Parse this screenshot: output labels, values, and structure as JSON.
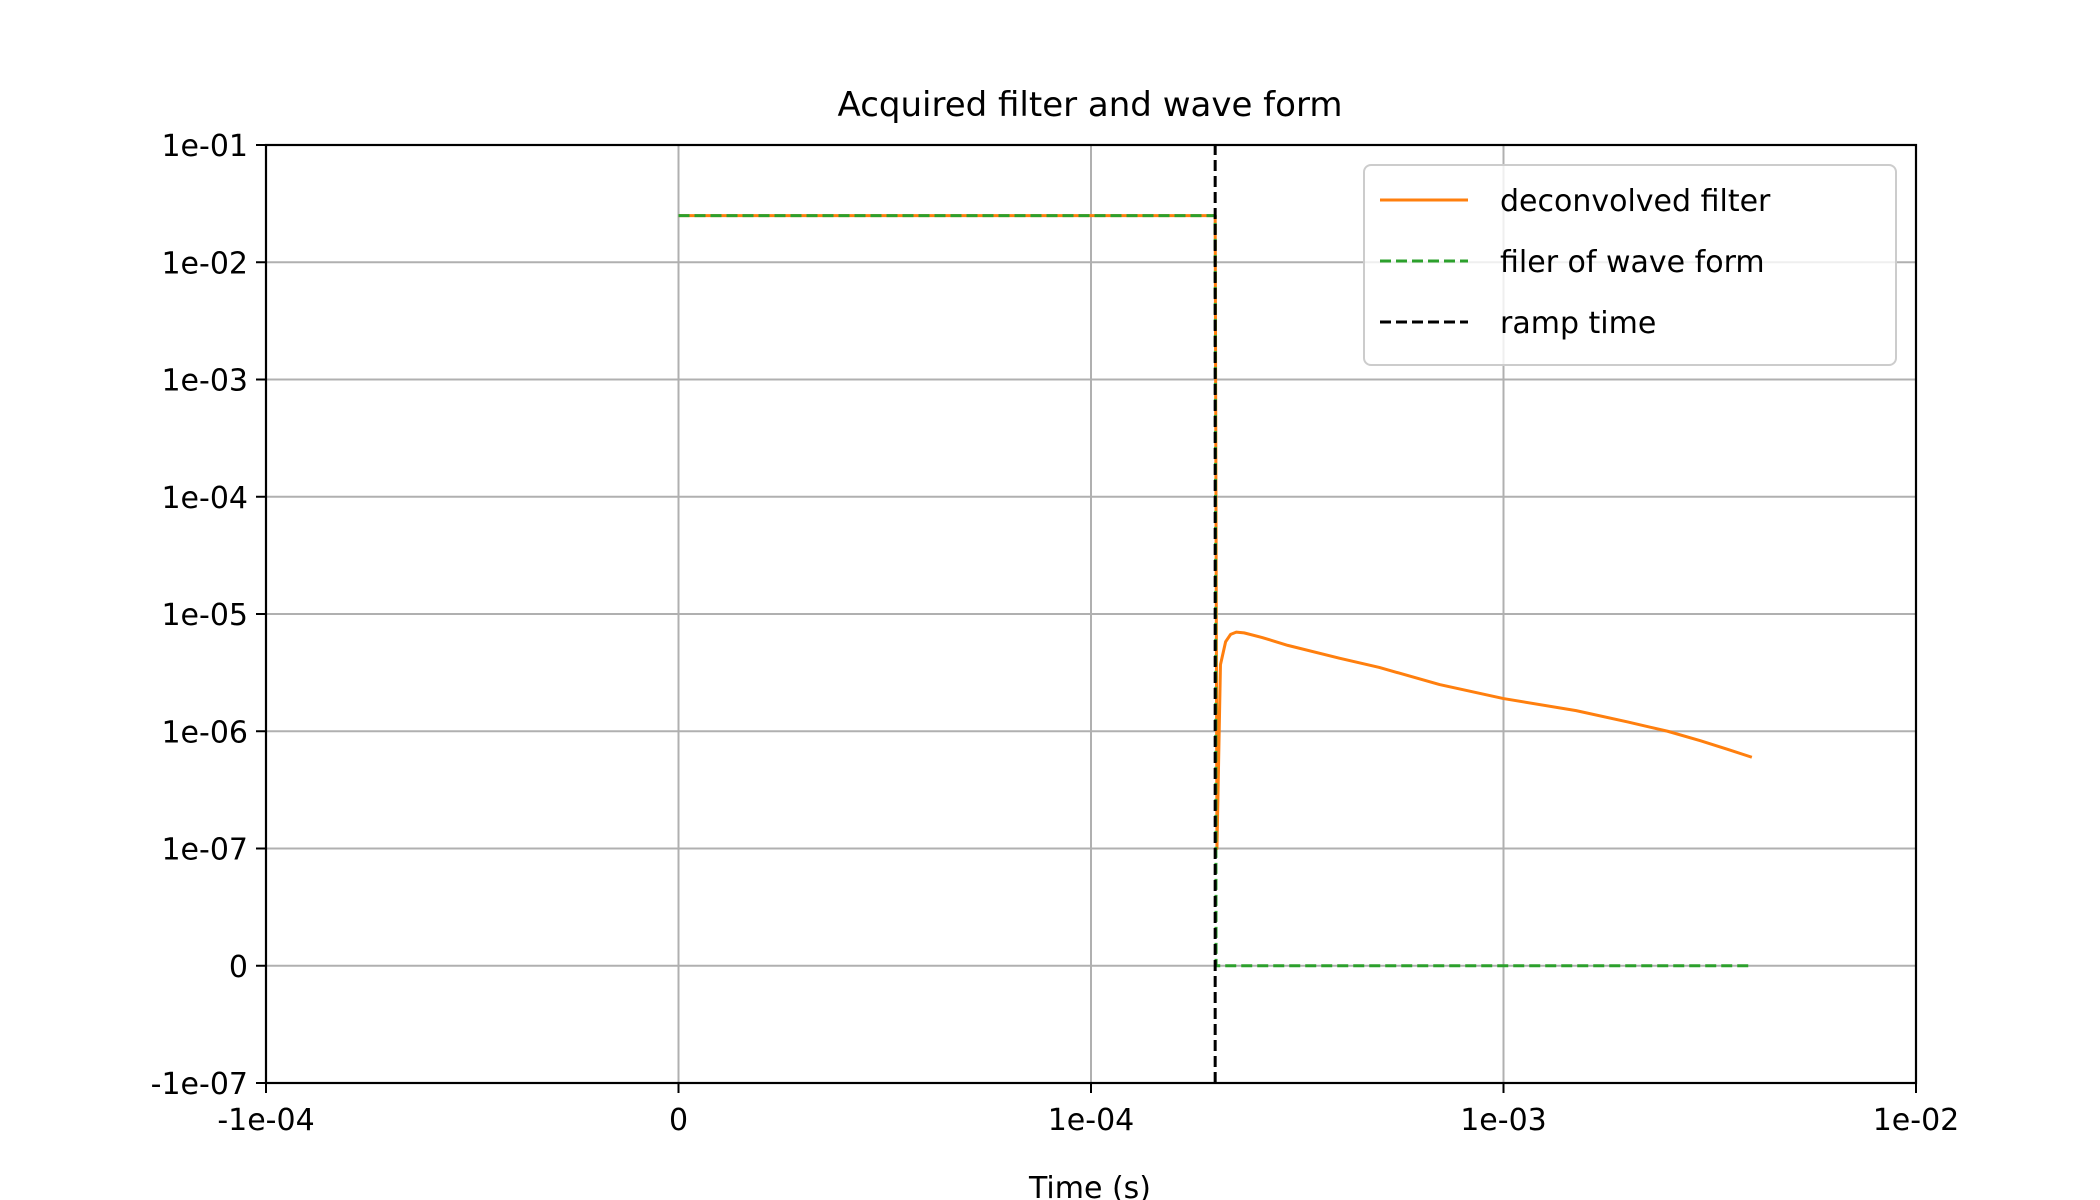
{
  "chart_data": {
    "type": "line",
    "title": "Acquired filter and wave form",
    "xlabel": "Time (s)",
    "ylabel": "",
    "x_scale": "symlog",
    "y_scale": "symlog",
    "xlim": [
      -0.0001,
      0.01
    ],
    "ylim": [
      -1e-07,
      0.1
    ],
    "x_ticks": [
      {
        "value": -0.0001,
        "label": "-1e-04"
      },
      {
        "value": 0,
        "label": "0"
      },
      {
        "value": 0.0001,
        "label": "1e-04"
      },
      {
        "value": 0.001,
        "label": "1e-03"
      },
      {
        "value": 0.01,
        "label": "1e-02"
      }
    ],
    "y_ticks": [
      {
        "value": -1e-07,
        "label": "-1e-07"
      },
      {
        "value": 0,
        "label": "0"
      },
      {
        "value": 1e-07,
        "label": "1e-07"
      },
      {
        "value": 1e-06,
        "label": "1e-06"
      },
      {
        "value": 1e-05,
        "label": "1e-05"
      },
      {
        "value": 0.0001,
        "label": "1e-04"
      },
      {
        "value": 0.001,
        "label": "1e-03"
      },
      {
        "value": 0.01,
        "label": "1e-02"
      },
      {
        "value": 0.1,
        "label": "1e-01"
      }
    ],
    "grid": true,
    "legend": "top-right",
    "series": [
      {
        "name": "deconvolved filter",
        "color": "#ff7f0e",
        "style": "solid",
        "points": [
          [
            0,
            0.025
          ],
          [
            0.0002,
            0.025
          ],
          [
            0.000202,
            1e-07
          ],
          [
            0.000206,
            3.7e-06
          ],
          [
            0.000212,
            5.8e-06
          ],
          [
            0.000218,
            6.7e-06
          ],
          [
            0.000225,
            7e-06
          ],
          [
            0.000235,
            6.9e-06
          ],
          [
            0.00026,
            6.3e-06
          ],
          [
            0.0003,
            5.4e-06
          ],
          [
            0.0004,
            4.2e-06
          ],
          [
            0.0005,
            3.5e-06
          ],
          [
            0.0007,
            2.5e-06
          ],
          [
            0.001,
            1.9e-06
          ],
          [
            0.0015,
            1.5e-06
          ],
          [
            0.002,
            1.2e-06
          ],
          [
            0.0025,
            1e-06
          ],
          [
            0.003,
            8.3e-07
          ],
          [
            0.0035,
            7e-07
          ],
          [
            0.004,
            6e-07
          ]
        ]
      },
      {
        "name": "filer of wave form",
        "color": "#2ca02c",
        "style": "dashed",
        "points": [
          [
            0,
            0.025
          ],
          [
            0.0002,
            0.025
          ],
          [
            0.000201,
            0
          ],
          [
            0.004,
            0
          ]
        ]
      },
      {
        "name": "ramp time",
        "color": "#000000",
        "style": "dashed",
        "points": [
          [
            0.0002,
            -1e-07
          ],
          [
            0.0002,
            0.1
          ]
        ]
      }
    ]
  }
}
